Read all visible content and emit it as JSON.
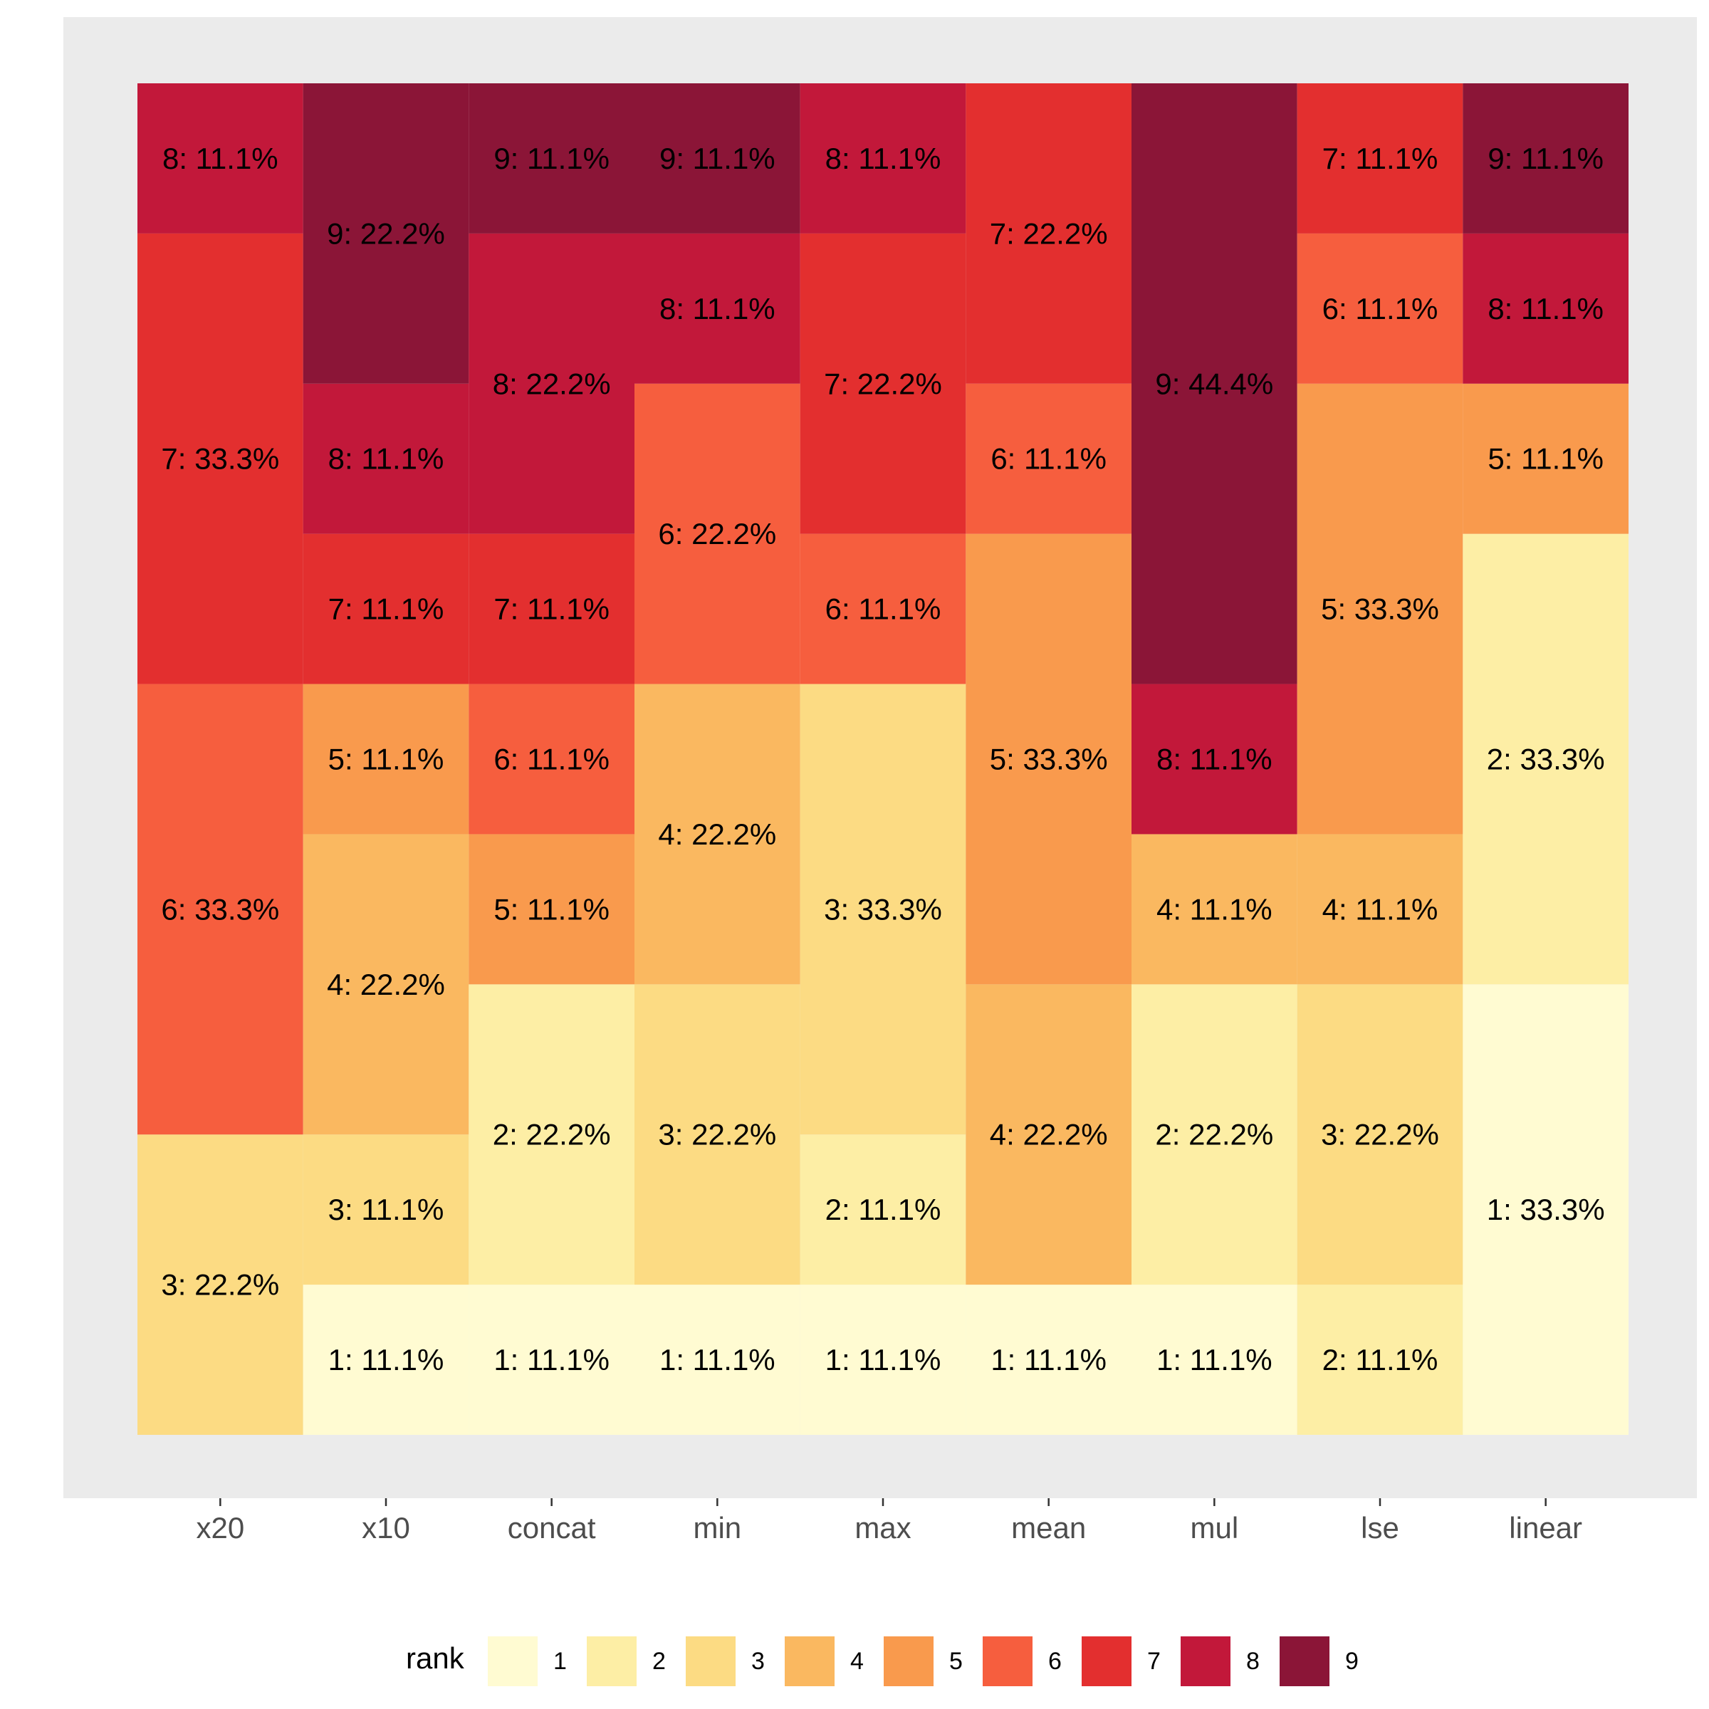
{
  "chart_data": {
    "type": "stacked-bar",
    "categories": [
      "x20",
      "x10",
      "concat",
      "min",
      "max",
      "mean",
      "mul",
      "lse",
      "linear"
    ],
    "ylim": [
      0,
      100
    ],
    "grid": false,
    "legend": {
      "title": "rank",
      "placement": "bottom",
      "keys": [
        "1",
        "2",
        "3",
        "4",
        "5",
        "6",
        "7",
        "8",
        "9"
      ]
    },
    "rank_colors": {
      "1": "#FFFBD2",
      "2": "#FDEEA5",
      "3": "#FCDB83",
      "4": "#FAB860",
      "5": "#F99A4D",
      "6": "#F65E3E",
      "7": "#E32F2F",
      "8": "#C2183A",
      "9": "#8B1537"
    },
    "panel_background": "#EBEBEB",
    "stacks": [
      {
        "category": "x20",
        "segments": [
          {
            "rank": 3,
            "value": 22.2,
            "label": "3: 22.2%"
          },
          {
            "rank": 6,
            "value": 33.3,
            "label": "6: 33.3%"
          },
          {
            "rank": 7,
            "value": 33.3,
            "label": "7: 33.3%"
          },
          {
            "rank": 8,
            "value": 11.1,
            "label": "8: 11.1%"
          }
        ]
      },
      {
        "category": "x10",
        "segments": [
          {
            "rank": 1,
            "value": 11.1,
            "label": "1: 11.1%"
          },
          {
            "rank": 3,
            "value": 11.1,
            "label": "3: 11.1%"
          },
          {
            "rank": 4,
            "value": 22.2,
            "label": "4: 22.2%"
          },
          {
            "rank": 5,
            "value": 11.1,
            "label": "5: 11.1%"
          },
          {
            "rank": 7,
            "value": 11.1,
            "label": "7: 11.1%"
          },
          {
            "rank": 8,
            "value": 11.1,
            "label": "8: 11.1%"
          },
          {
            "rank": 9,
            "value": 22.2,
            "label": "9: 22.2%"
          }
        ]
      },
      {
        "category": "concat",
        "segments": [
          {
            "rank": 1,
            "value": 11.1,
            "label": "1: 11.1%"
          },
          {
            "rank": 2,
            "value": 22.2,
            "label": "2: 22.2%"
          },
          {
            "rank": 5,
            "value": 11.1,
            "label": "5: 11.1%"
          },
          {
            "rank": 6,
            "value": 11.1,
            "label": "6: 11.1%"
          },
          {
            "rank": 7,
            "value": 11.1,
            "label": "7: 11.1%"
          },
          {
            "rank": 8,
            "value": 22.2,
            "label": "8: 22.2%"
          },
          {
            "rank": 9,
            "value": 11.1,
            "label": "9: 11.1%"
          }
        ]
      },
      {
        "category": "min",
        "segments": [
          {
            "rank": 1,
            "value": 11.1,
            "label": "1: 11.1%"
          },
          {
            "rank": 3,
            "value": 22.2,
            "label": "3: 22.2%"
          },
          {
            "rank": 4,
            "value": 22.2,
            "label": "4: 22.2%"
          },
          {
            "rank": 6,
            "value": 22.2,
            "label": "6: 22.2%"
          },
          {
            "rank": 8,
            "value": 11.1,
            "label": "8: 11.1%"
          },
          {
            "rank": 9,
            "value": 11.1,
            "label": "9: 11.1%"
          }
        ]
      },
      {
        "category": "max",
        "segments": [
          {
            "rank": 1,
            "value": 11.1,
            "label": "1: 11.1%"
          },
          {
            "rank": 2,
            "value": 11.1,
            "label": "2: 11.1%"
          },
          {
            "rank": 3,
            "value": 33.3,
            "label": "3: 33.3%"
          },
          {
            "rank": 6,
            "value": 11.1,
            "label": "6: 11.1%"
          },
          {
            "rank": 7,
            "value": 22.2,
            "label": "7: 22.2%"
          },
          {
            "rank": 8,
            "value": 11.1,
            "label": "8: 11.1%"
          }
        ]
      },
      {
        "category": "mean",
        "segments": [
          {
            "rank": 1,
            "value": 11.1,
            "label": "1: 11.1%"
          },
          {
            "rank": 4,
            "value": 22.2,
            "label": "4: 22.2%"
          },
          {
            "rank": 5,
            "value": 33.3,
            "label": "5: 33.3%"
          },
          {
            "rank": 6,
            "value": 11.1,
            "label": "6: 11.1%"
          },
          {
            "rank": 7,
            "value": 22.2,
            "label": "7: 22.2%"
          }
        ]
      },
      {
        "category": "mul",
        "segments": [
          {
            "rank": 1,
            "value": 11.1,
            "label": "1: 11.1%"
          },
          {
            "rank": 2,
            "value": 22.2,
            "label": "2: 22.2%"
          },
          {
            "rank": 4,
            "value": 11.1,
            "label": "4: 11.1%"
          },
          {
            "rank": 8,
            "value": 11.1,
            "label": "8: 11.1%"
          },
          {
            "rank": 9,
            "value": 44.4,
            "label": "9: 44.4%"
          }
        ]
      },
      {
        "category": "lse",
        "segments": [
          {
            "rank": 2,
            "value": 11.1,
            "label": "2: 11.1%"
          },
          {
            "rank": 3,
            "value": 22.2,
            "label": "3: 22.2%"
          },
          {
            "rank": 4,
            "value": 11.1,
            "label": "4: 11.1%"
          },
          {
            "rank": 5,
            "value": 33.3,
            "label": "5: 33.3%"
          },
          {
            "rank": 6,
            "value": 11.1,
            "label": "6: 11.1%"
          },
          {
            "rank": 7,
            "value": 11.1,
            "label": "7: 11.1%"
          }
        ]
      },
      {
        "category": "linear",
        "segments": [
          {
            "rank": 1,
            "value": 33.3,
            "label": "1: 33.3%"
          },
          {
            "rank": 2,
            "value": 33.3,
            "label": "2: 33.3%"
          },
          {
            "rank": 5,
            "value": 11.1,
            "label": "5: 11.1%"
          },
          {
            "rank": 8,
            "value": 11.1,
            "label": "8: 11.1%"
          },
          {
            "rank": 9,
            "value": 11.1,
            "label": "9: 11.1%"
          }
        ]
      }
    ]
  }
}
